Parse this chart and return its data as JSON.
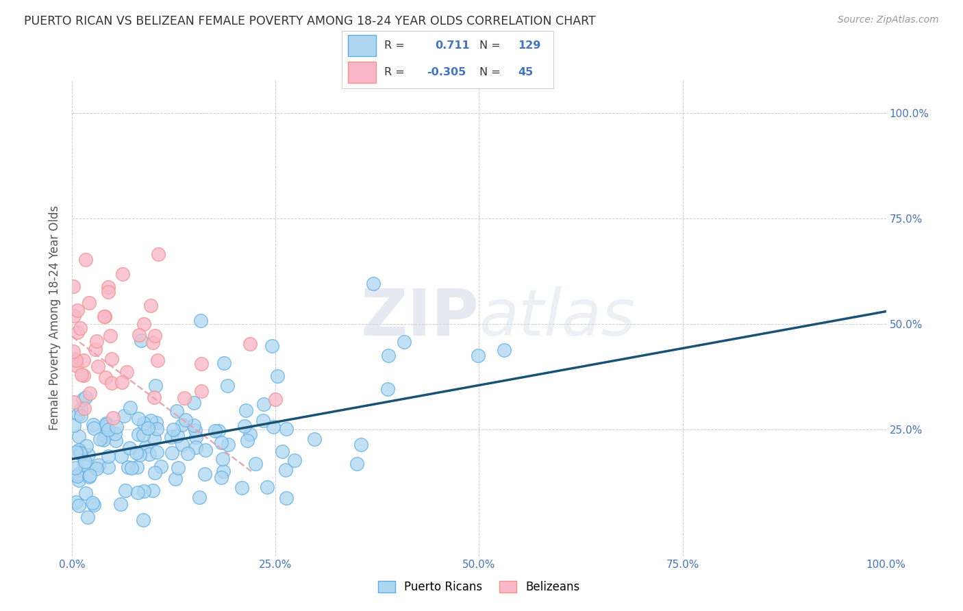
{
  "title": "PUERTO RICAN VS BELIZEAN FEMALE POVERTY AMONG 18-24 YEAR OLDS CORRELATION CHART",
  "source": "Source: ZipAtlas.com",
  "ylabel": "Female Poverty Among 18-24 Year Olds",
  "watermark": "ZIPatlas",
  "blue_face": "#aed6f1",
  "blue_edge": "#5dade2",
  "pink_face": "#f9b8c8",
  "pink_edge": "#f1948a",
  "trend_blue": "#1a5276",
  "trend_pink": "#e8a0b0",
  "background": "#ffffff",
  "grid_color": "#c8c8c8",
  "title_color": "#333333",
  "label_color": "#555555",
  "tick_color": "#4472c4",
  "legend_box_edge": "#b0b0b0",
  "pr_seed": 17,
  "bz_seed": 99
}
